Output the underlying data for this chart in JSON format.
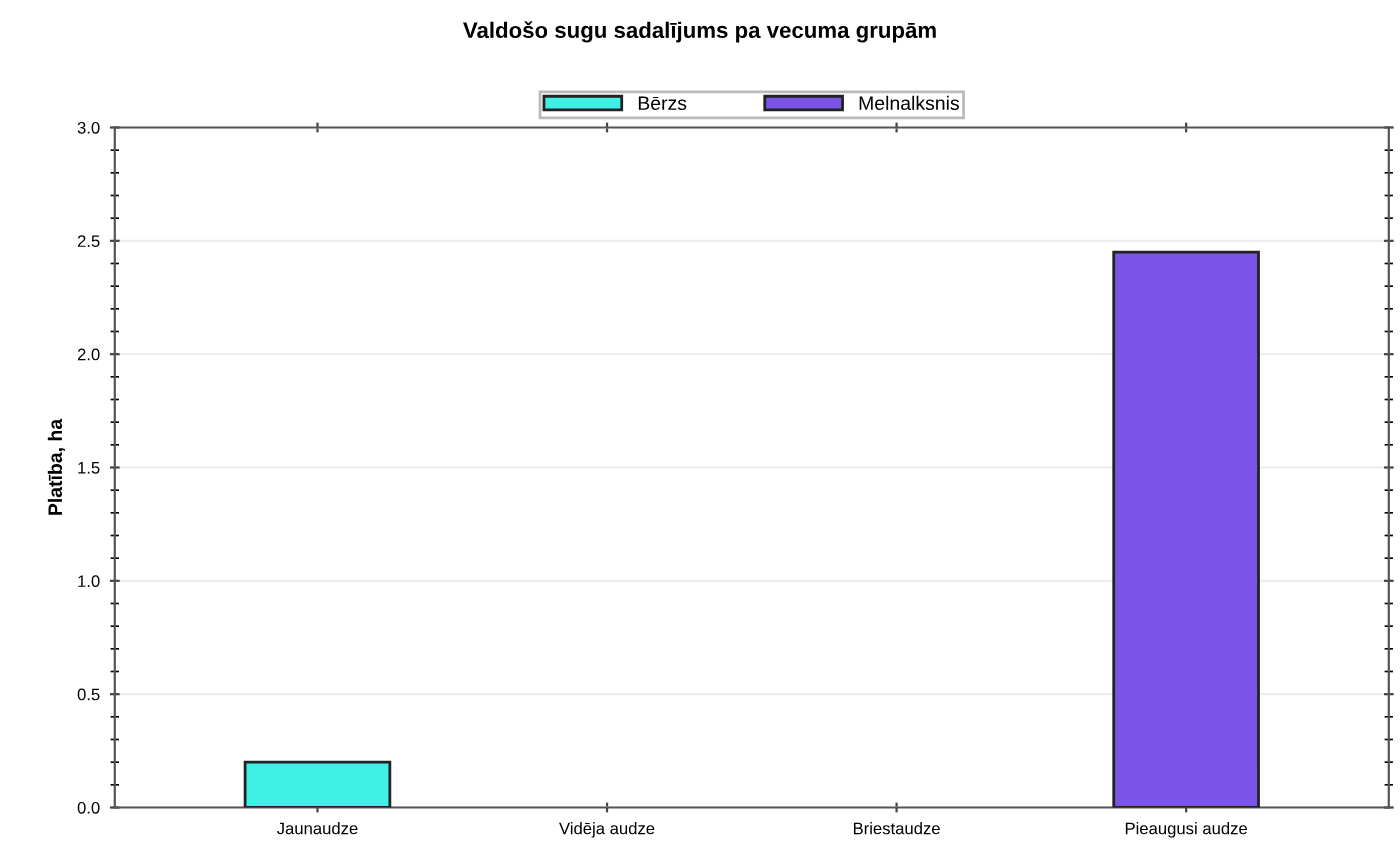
{
  "chart_data": {
    "type": "bar",
    "title": "Valdošo sugu sadalījums pa vecuma grupām",
    "ylabel": "Platība, ha",
    "categories": [
      "Jaunaudze",
      "Vidēja audze",
      "Briestaudze",
      "Pieaugusi audze"
    ],
    "series": [
      {
        "name": "Bērzs",
        "color": "#3ff0e6",
        "values": [
          0.2,
          null,
          null,
          null
        ]
      },
      {
        "name": "Melnalksnis",
        "color": "#7b55e8",
        "values": [
          null,
          null,
          null,
          2.45
        ]
      }
    ],
    "ylim": [
      0,
      3
    ],
    "yticks": [
      {
        "value": 0,
        "label": "0.0"
      },
      {
        "value": 0.5,
        "label": "0.5"
      },
      {
        "value": 1,
        "label": "1.0"
      },
      {
        "value": 1.5,
        "label": "1.5"
      },
      {
        "value": 2,
        "label": "2.0"
      },
      {
        "value": 2.5,
        "label": "2.5"
      },
      {
        "value": 3,
        "label": "3.0"
      }
    ],
    "grid": "y",
    "legend": "top"
  }
}
